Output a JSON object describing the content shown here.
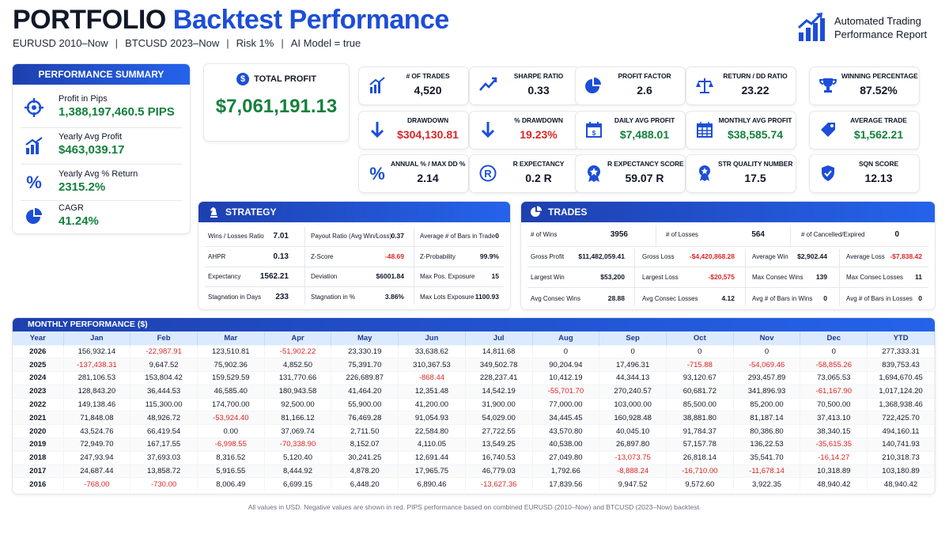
{
  "header": {
    "title_part1": "PORTFOLIO",
    "title_part2": "Backtest Performance",
    "subtitle": [
      "EURUSD 2010–Now",
      "BTCUSD 2023–Now",
      "Risk 1%",
      "AI Model = true"
    ],
    "report_line1": "Automated Trading",
    "report_line2": "Performance Report",
    "logo_icon": "bar-chart-growth-icon"
  },
  "performance_summary": {
    "title": "PERFORMANCE SUMMARY",
    "items": [
      {
        "label": "Profit in Pips",
        "value": "1,388,197,460.5 PIPS",
        "icon": "target-icon"
      },
      {
        "label": "Yearly Avg Profit",
        "value": "$463,039.17",
        "icon": "bar-chart-icon"
      },
      {
        "label": "Yearly Avg % Return",
        "value": "2315.2%",
        "icon": "percent-icon"
      },
      {
        "label": "CAGR",
        "value": "41.24%",
        "icon": "pie-chart-icon"
      }
    ]
  },
  "total_profit": {
    "label": "TOTAL PROFIT",
    "value": "$7,061,191.13"
  },
  "metrics": [
    {
      "label": "# OF TRADES",
      "value": "4,520",
      "color": "dark",
      "icon": "bar-chart-icon"
    },
    {
      "label": "SHARPE RATIO",
      "value": "0.33",
      "color": "dark",
      "icon": "trend-line-icon"
    },
    {
      "label": "PROFIT FACTOR",
      "value": "2.6",
      "color": "dark",
      "icon": "pie-chart-icon"
    },
    {
      "label": "RETURN / DD RATIO",
      "value": "23.22",
      "color": "dark",
      "icon": "scale-icon"
    },
    {
      "label": "WINNING PERCENTAGE",
      "value": "87.52%",
      "color": "dark",
      "icon": "trophy-icon"
    },
    {
      "label": "DRAWDOWN",
      "value": "$304,130.81",
      "color": "red",
      "icon": "arrow-down-icon"
    },
    {
      "label": "% DRAWDOWN",
      "value": "19.23%",
      "color": "red",
      "icon": "arrow-down-icon"
    },
    {
      "label": "DAILY AVG PROFIT",
      "value": "$7,488.01",
      "color": "green",
      "icon": "calendar-icon"
    },
    {
      "label": "MONTHLY AVG PROFIT",
      "value": "$38,585.74",
      "color": "green",
      "icon": "calendar-grid-icon"
    },
    {
      "label": "AVERAGE TRADE",
      "value": "$1,562.21",
      "color": "green",
      "icon": "tag-icon"
    },
    {
      "label": "ANNUAL % / MAX DD %",
      "value": "2.14",
      "color": "dark",
      "icon": "percent-icon"
    },
    {
      "label": "R EXPECTANCY",
      "value": "0.2 R",
      "color": "dark",
      "icon": "r-circle-icon"
    },
    {
      "label": "R EXPECTANCY SCORE",
      "value": "59.07 R",
      "color": "dark",
      "icon": "badge-icon"
    },
    {
      "label": "STR QUALITY NUMBER",
      "value": "17.5",
      "color": "dark",
      "icon": "award-icon"
    },
    {
      "label": "SQN SCORE",
      "value": "12.13",
      "color": "dark",
      "icon": "shield-icon"
    }
  ],
  "strategy": {
    "title": "STRATEGY",
    "rows": [
      [
        {
          "label": "Wins / Losses Ratio",
          "value": "7.01",
          "neg": false
        },
        {
          "label": "Payout Ratio (Avg Win/Loss)",
          "value": "0.37",
          "neg": false
        },
        {
          "label": "Average # of Bars in Trade",
          "value": "0",
          "neg": false
        }
      ],
      [
        {
          "label": "AHPR",
          "value": "0.13",
          "neg": false
        },
        {
          "label": "Z-Score",
          "value": "-48.69",
          "neg": true
        },
        {
          "label": "Z-Probability",
          "value": "99.9%",
          "neg": false
        }
      ],
      [
        {
          "label": "Expectancy",
          "value": "1562.21",
          "neg": false
        },
        {
          "label": "Deviation",
          "value": "$6001.84",
          "neg": false
        },
        {
          "label": "Max Pos. Exposure",
          "value": "15",
          "neg": false
        }
      ],
      [
        {
          "label": "Stagnation in Days",
          "value": "233",
          "neg": false
        },
        {
          "label": "Stagnation in %",
          "value": "3.86%",
          "neg": false
        },
        {
          "label": "Max Lots Exposure",
          "value": "1100.93",
          "neg": false
        }
      ]
    ]
  },
  "trades": {
    "title": "TRADES",
    "top": [
      {
        "label": "# of Wins",
        "value": "3956"
      },
      {
        "label": "#  of  Losses",
        "value": "564"
      },
      {
        "label": "# of Cancelled/Expired",
        "value": "0"
      }
    ],
    "rows": [
      [
        {
          "label": "Gross Profit",
          "value": "$11,482,059.41",
          "neg": false
        },
        {
          "label": "Gross Loss",
          "value": "-$4,420,868.28",
          "neg": true
        },
        {
          "label": "Average Win",
          "value": "$2,902.44",
          "neg": false
        },
        {
          "label": "Average Loss",
          "value": "-$7,838.42",
          "neg": true
        }
      ],
      [
        {
          "label": "Largest Win",
          "value": "$53,200",
          "neg": false
        },
        {
          "label": "Largest Loss",
          "value": "-$20,575",
          "neg": true
        },
        {
          "label": "Max Consec Wins",
          "value": "139",
          "neg": false
        },
        {
          "label": "Max Consec Losses",
          "value": "11",
          "neg": false
        }
      ],
      [
        {
          "label": "Avg Consec Wins",
          "value": "28.88",
          "neg": false
        },
        {
          "label": "Avg Consec Losses",
          "value": "4.12",
          "neg": false
        },
        {
          "label": "Avg # of Bars in Wins",
          "value": "0",
          "neg": false
        },
        {
          "label": "Avg # of Bars in Losses",
          "value": "0",
          "neg": false
        }
      ]
    ]
  },
  "monthly": {
    "title": "MONTHLY PERFORMANCE ($)",
    "columns": [
      "Year",
      "Jan",
      "Feb",
      "Mar",
      "Apr",
      "May",
      "Jun",
      "Jul",
      "Aug",
      "Sep",
      "Oct",
      "Nov",
      "Dec",
      "YTD"
    ],
    "rows": [
      [
        "2026",
        "156,932.14",
        "-22,987.91",
        "123,510.81",
        "-51,902.22",
        "23,330.19",
        "33,638.62",
        "14,811.68",
        "0",
        "0",
        "0",
        "0",
        "0",
        "277,333.31"
      ],
      [
        "2025",
        "-137,438.31",
        "9,647.52",
        "75,902.36",
        "4,852.50",
        "75,391.70",
        "310,367.53",
        "349,502.78",
        "90,204.94",
        "17,496.31",
        "-715.88",
        "-54,069.46",
        "-58,855.26",
        "839,753.43"
      ],
      [
        "2024",
        "281,106.53",
        "153,804.42",
        "159,529.59",
        "131,770.66",
        "226,689.87",
        "-868.44",
        "228,237.41",
        "10,412.19",
        "44,344.13",
        "93,120.67",
        "293,457.89",
        "73,065.53",
        "1,694,670.45"
      ],
      [
        "2023",
        "128,843.20",
        "36,444.53",
        "46,585.40",
        "180,943.58",
        "41,464.20",
        "12,351.48",
        "14,542.19",
        "-55,701.70",
        "270,240.57",
        "60,681.72",
        "341,896.93",
        "-61,167.90",
        "1,017,124.20"
      ],
      [
        "2022",
        "149,138.46",
        "115,300.00",
        "174,700.00",
        "92,500.00",
        "55,900.00",
        "41,200.00",
        "31,900.00",
        "77,000.00",
        "103,000.00",
        "85,500.00",
        "85,200.00",
        "70,500.00",
        "1,368,938.46"
      ],
      [
        "2021",
        "71,848.08",
        "48,926.72",
        "-53,924.40",
        "81,166.12",
        "76,469.28",
        "91,054.93",
        "54,029.00",
        "34,445.45",
        "160,928.48",
        "38,881.80",
        "81,187.14",
        "37,413.10",
        "722,425.70"
      ],
      [
        "2020",
        "43,524.76",
        "66,419.54",
        "0.00",
        "37,069.74",
        "2,711.50",
        "22,584.80",
        "27,722.55",
        "43,570.80",
        "40,045.10",
        "91,784.37",
        "80,386.80",
        "38,340.15",
        "494,160.11"
      ],
      [
        "2019",
        "72,949.70",
        "167,17.55",
        "-6,998.55",
        "-70,338.90",
        "8,152.07",
        "4,110.05",
        "13,549.25",
        "40,538.00",
        "26,897.80",
        "57,157.78",
        "136,22.53",
        "-35,615.35",
        "140,741.93"
      ],
      [
        "2018",
        "247,93.94",
        "37,693.03",
        "8,316.52",
        "5,120.40",
        "30,241.25",
        "12,691.44",
        "16,740.53",
        "27,049.80",
        "-13,073.75",
        "26,818.14",
        "35,541.70",
        "-16,14.27",
        "210,318.73"
      ],
      [
        "2017",
        "24,687.44",
        "13,858.72",
        "5,916.55",
        "8,444.92",
        "4,878.20",
        "17,965.75",
        "46,779.03",
        "1,792.66",
        "-8,888.24",
        "-16,710.00",
        "-11,678.14",
        "10,318.89",
        "103,180.89"
      ],
      [
        "2016",
        "-768.00",
        "-730.00",
        "8,006.49",
        "6,699.15",
        "6,448.20",
        "6,890.46",
        "-13,627.36",
        "17,839.56",
        "9,947.52",
        "9,572.60",
        "3,922.35",
        "48,940.42",
        "48,940.42"
      ]
    ]
  },
  "footnote": "All values in USD. Negative values are shown in red. PIPS performance based on combined EURUSD (2010–Now) and BTCUSD (2023–Now) backtest.",
  "colors": {
    "accent": "#1d4ed8",
    "positive": "#15803d",
    "negative": "#dc2626"
  }
}
